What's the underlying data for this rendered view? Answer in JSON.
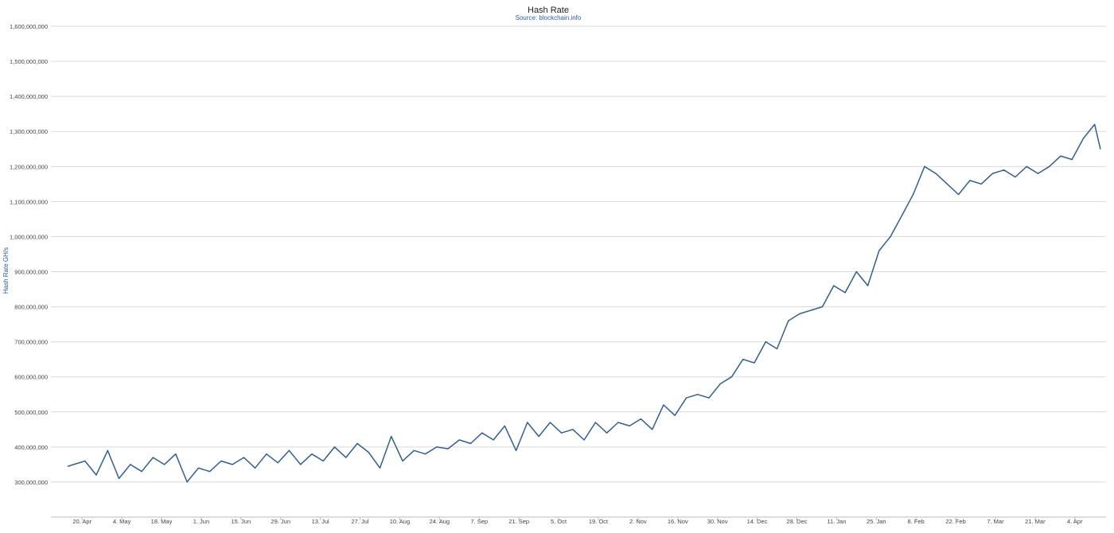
{
  "chart_data": {
    "type": "line",
    "title": "Hash Rate",
    "subtitle": "Source: blockchain.info",
    "xlabel": "",
    "ylabel": "Hash Rate GH/s",
    "ylim": [
      200000000,
      1600000000
    ],
    "y_ticks": [
      "300,000,000",
      "400,000,000",
      "500,000,000",
      "600,000,000",
      "700,000,000",
      "800,000,000",
      "900,000,000",
      "1,000,000,000",
      "1,100,000,000",
      "1,200,000,000",
      "1,300,000,000",
      "1,400,000,000",
      "1,500,000,000",
      "1,600,000,000"
    ],
    "x_ticks": [
      "20. Apr",
      "4. May",
      "18. May",
      "1. Jun",
      "15. Jun",
      "29. Jun",
      "13. Jul",
      "27. Jul",
      "10. Aug",
      "24. Aug",
      "7. Sep",
      "21. Sep",
      "5. Oct",
      "19. Oct",
      "2. Nov",
      "16. Nov",
      "30. Nov",
      "14. Dec",
      "28. Dec",
      "11. Jan",
      "25. Jan",
      "8. Feb",
      "22. Feb",
      "7. Mar",
      "21. Mar",
      "4. Apr"
    ],
    "series": [
      {
        "color": "#335f8f",
        "points": [
          [
            "2015-04-15",
            345000000
          ],
          [
            "2015-04-21",
            360000000
          ],
          [
            "2015-04-25",
            320000000
          ],
          [
            "2015-04-29",
            390000000
          ],
          [
            "2015-05-03",
            310000000
          ],
          [
            "2015-05-07",
            350000000
          ],
          [
            "2015-05-11",
            330000000
          ],
          [
            "2015-05-15",
            370000000
          ],
          [
            "2015-05-19",
            350000000
          ],
          [
            "2015-05-23",
            380000000
          ],
          [
            "2015-05-27",
            300000000
          ],
          [
            "2015-05-31",
            340000000
          ],
          [
            "2015-06-04",
            330000000
          ],
          [
            "2015-06-08",
            360000000
          ],
          [
            "2015-06-12",
            350000000
          ],
          [
            "2015-06-16",
            370000000
          ],
          [
            "2015-06-20",
            340000000
          ],
          [
            "2015-06-24",
            380000000
          ],
          [
            "2015-06-28",
            355000000
          ],
          [
            "2015-07-02",
            390000000
          ],
          [
            "2015-07-06",
            350000000
          ],
          [
            "2015-07-10",
            380000000
          ],
          [
            "2015-07-14",
            360000000
          ],
          [
            "2015-07-18",
            400000000
          ],
          [
            "2015-07-22",
            370000000
          ],
          [
            "2015-07-26",
            410000000
          ],
          [
            "2015-07-30",
            385000000
          ],
          [
            "2015-08-03",
            340000000
          ],
          [
            "2015-08-07",
            430000000
          ],
          [
            "2015-08-11",
            360000000
          ],
          [
            "2015-08-15",
            390000000
          ],
          [
            "2015-08-19",
            380000000
          ],
          [
            "2015-08-23",
            400000000
          ],
          [
            "2015-08-27",
            395000000
          ],
          [
            "2015-08-31",
            420000000
          ],
          [
            "2015-09-04",
            410000000
          ],
          [
            "2015-09-08",
            440000000
          ],
          [
            "2015-09-12",
            420000000
          ],
          [
            "2015-09-16",
            460000000
          ],
          [
            "2015-09-20",
            390000000
          ],
          [
            "2015-09-24",
            470000000
          ],
          [
            "2015-09-28",
            430000000
          ],
          [
            "2015-10-02",
            470000000
          ],
          [
            "2015-10-06",
            440000000
          ],
          [
            "2015-10-10",
            450000000
          ],
          [
            "2015-10-14",
            420000000
          ],
          [
            "2015-10-18",
            470000000
          ],
          [
            "2015-10-22",
            440000000
          ],
          [
            "2015-10-26",
            470000000
          ],
          [
            "2015-10-30",
            460000000
          ],
          [
            "2015-11-03",
            480000000
          ],
          [
            "2015-11-07",
            450000000
          ],
          [
            "2015-11-11",
            520000000
          ],
          [
            "2015-11-15",
            490000000
          ],
          [
            "2015-11-19",
            540000000
          ],
          [
            "2015-11-23",
            550000000
          ],
          [
            "2015-11-27",
            540000000
          ],
          [
            "2015-12-01",
            580000000
          ],
          [
            "2015-12-05",
            600000000
          ],
          [
            "2015-12-09",
            650000000
          ],
          [
            "2015-12-13",
            640000000
          ],
          [
            "2015-12-17",
            700000000
          ],
          [
            "2015-12-21",
            680000000
          ],
          [
            "2015-12-25",
            760000000
          ],
          [
            "2015-12-29",
            780000000
          ],
          [
            "2016-01-02",
            790000000
          ],
          [
            "2016-01-06",
            800000000
          ],
          [
            "2016-01-10",
            860000000
          ],
          [
            "2016-01-14",
            840000000
          ],
          [
            "2016-01-18",
            900000000
          ],
          [
            "2016-01-22",
            860000000
          ],
          [
            "2016-01-26",
            960000000
          ],
          [
            "2016-01-30",
            1000000000
          ],
          [
            "2016-02-03",
            1060000000
          ],
          [
            "2016-02-07",
            1120000000
          ],
          [
            "2016-02-11",
            1200000000
          ],
          [
            "2016-02-15",
            1180000000
          ],
          [
            "2016-02-19",
            1150000000
          ],
          [
            "2016-02-23",
            1120000000
          ],
          [
            "2016-02-27",
            1160000000
          ],
          [
            "2016-03-02",
            1150000000
          ],
          [
            "2016-03-06",
            1180000000
          ],
          [
            "2016-03-10",
            1190000000
          ],
          [
            "2016-03-14",
            1170000000
          ],
          [
            "2016-03-18",
            1200000000
          ],
          [
            "2016-03-22",
            1180000000
          ],
          [
            "2016-03-26",
            1200000000
          ],
          [
            "2016-03-30",
            1230000000
          ],
          [
            "2016-04-03",
            1220000000
          ],
          [
            "2016-04-07",
            1280000000
          ],
          [
            "2016-04-11",
            1320000000
          ],
          [
            "2016-04-13",
            1250000000
          ]
        ]
      }
    ],
    "grid": true,
    "legend": "none"
  }
}
